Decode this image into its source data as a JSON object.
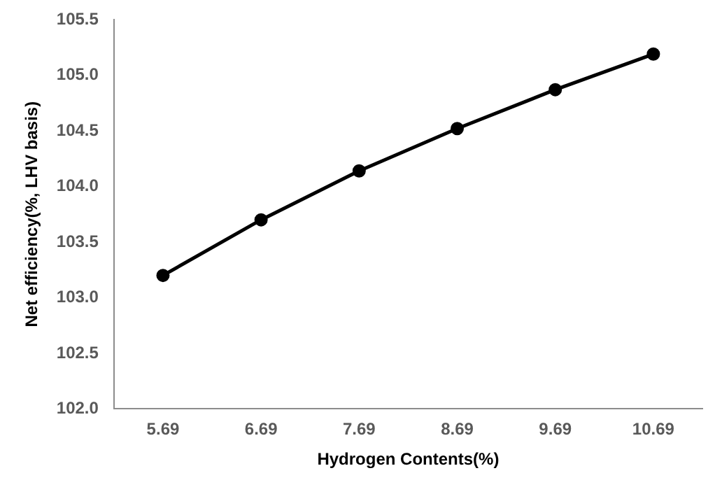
{
  "chart_data": {
    "type": "line",
    "xlabel": "Hydrogen Contents(%)",
    "ylabel": "Net efficiency(%, LHV basis)",
    "categories": [
      "5.69",
      "6.69",
      "7.69",
      "8.69",
      "9.69",
      "10.69"
    ],
    "values": [
      103.2,
      103.7,
      104.14,
      104.52,
      104.87,
      105.19
    ],
    "color": "#000000",
    "marker": "circle",
    "line_style": "solid",
    "grid": false,
    "legend": false,
    "ylim": [
      102,
      105.5
    ],
    "yticks": [
      {
        "value": 102,
        "label": "102.0"
      },
      {
        "value": 102.5,
        "label": "102.5"
      },
      {
        "value": 103,
        "label": "103.0"
      },
      {
        "value": 103.5,
        "label": "103.5"
      },
      {
        "value": 104,
        "label": "104.0"
      },
      {
        "value": 104.5,
        "label": "104.5"
      },
      {
        "value": 105,
        "label": "105.0"
      },
      {
        "value": 105.5,
        "label": "105.5"
      }
    ]
  }
}
